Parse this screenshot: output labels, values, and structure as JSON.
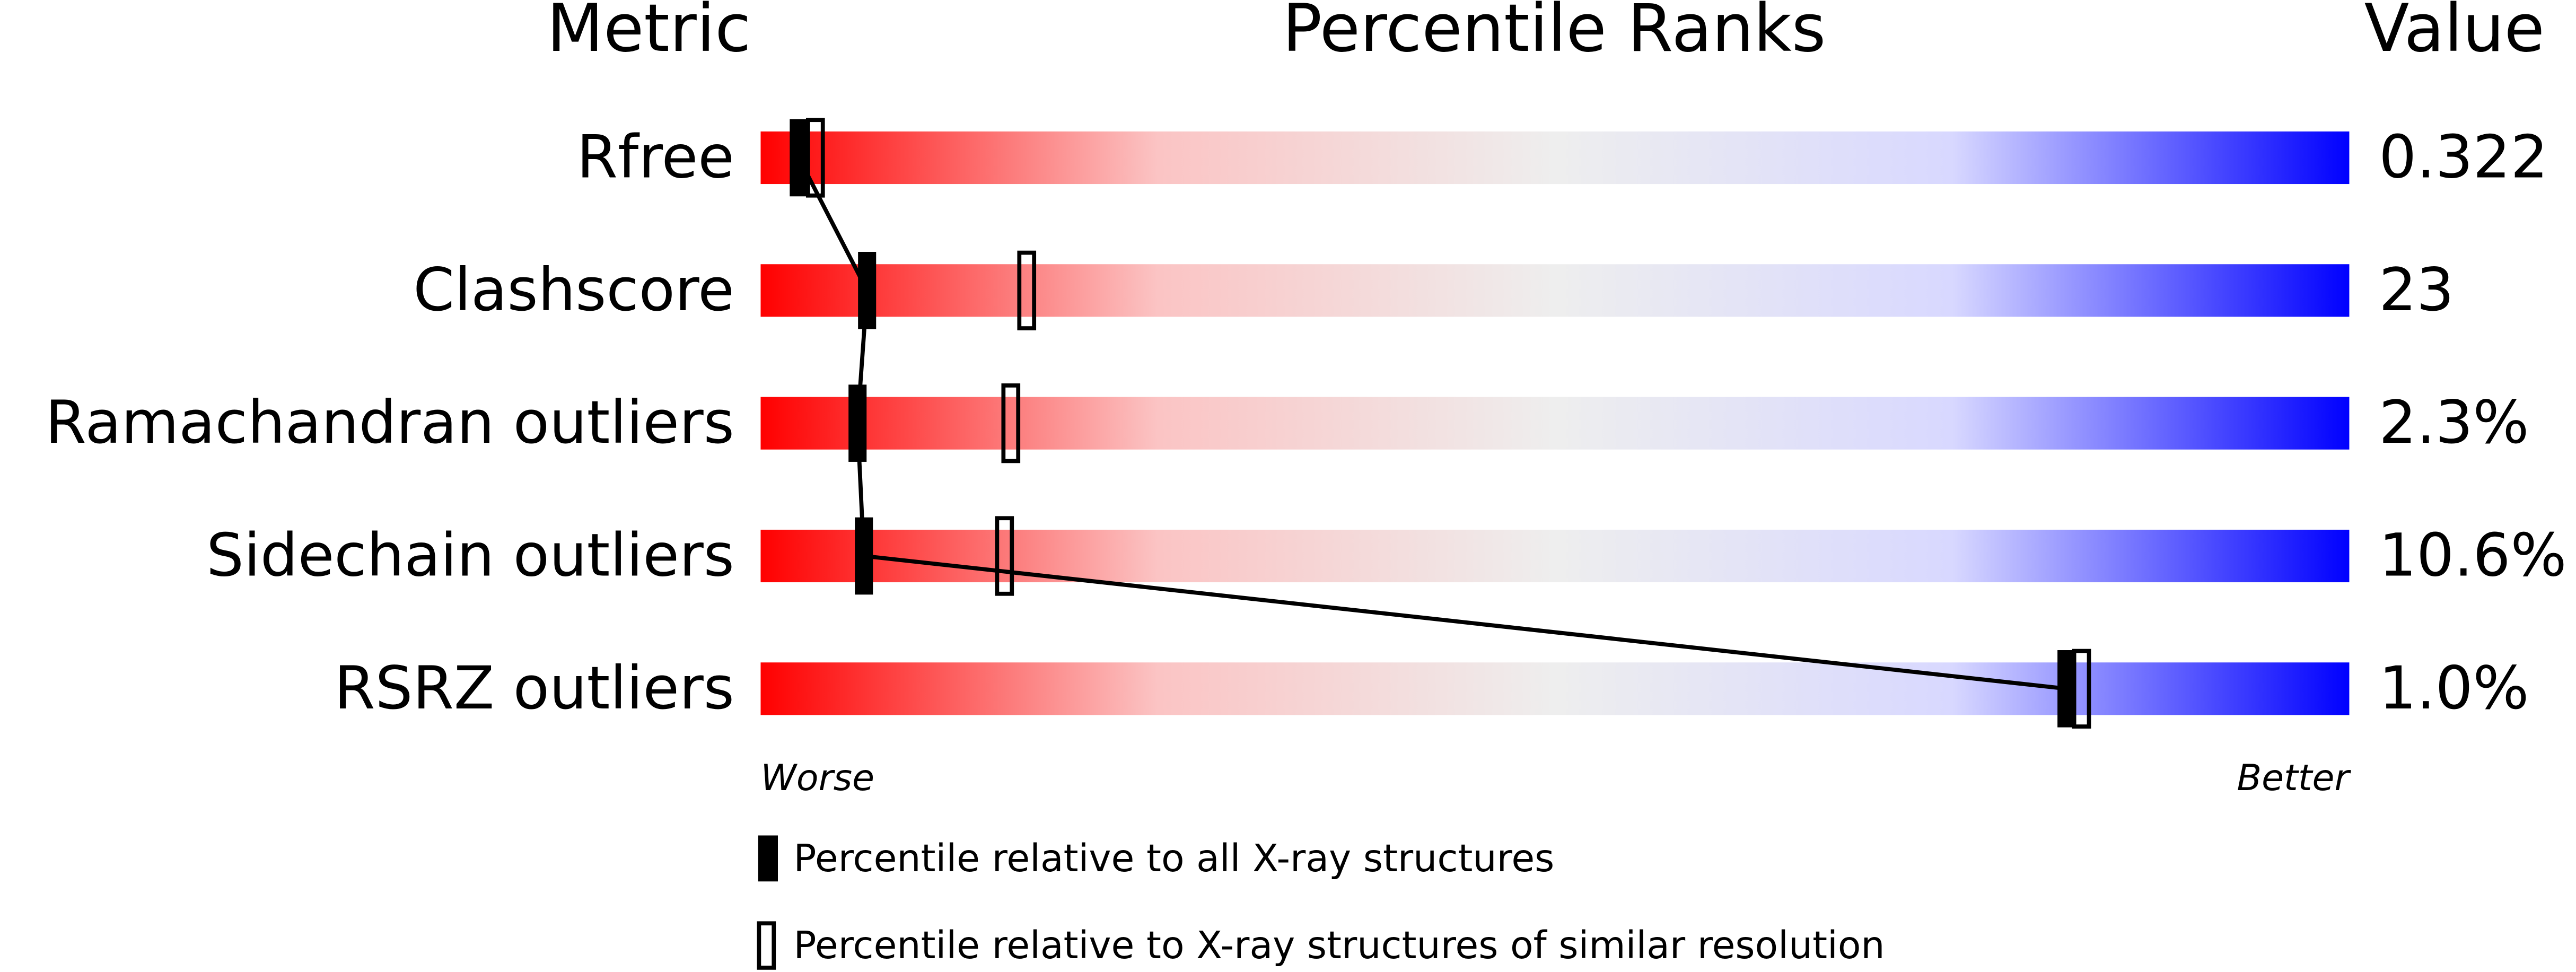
{
  "chart_data": {
    "type": "percentile",
    "headers": {
      "metric": "Metric",
      "ranks": "Percentile Ranks",
      "value": "Value"
    },
    "categories": [
      "Rfree",
      "Clashscore",
      "Ramachandran outliers",
      "Sidechain outliers",
      "RSRZ outliers"
    ],
    "metric_values": [
      "0.322",
      "23",
      "2.3%",
      "10.6%",
      "1.0%"
    ],
    "series": [
      {
        "name": "Percentile relative to all X-ray structures",
        "color": "#000000",
        "filled": true,
        "values": [
          2.4,
          6.7,
          6.1,
          6.5,
          82.2
        ]
      },
      {
        "name": "Percentile relative to X-ray structures of similar resolution",
        "color": "#000000",
        "filled": false,
        "values": [
          3.5,
          16.8,
          15.8,
          15.4,
          83.2
        ]
      }
    ],
    "xlim": [
      0,
      100
    ],
    "x_low_label": "Worse",
    "x_high_label": "Better",
    "gradient": [
      "#ff0000",
      "#fbc4c4",
      "#eeeeee",
      "#d8d8ff",
      "#0000ff"
    ]
  }
}
